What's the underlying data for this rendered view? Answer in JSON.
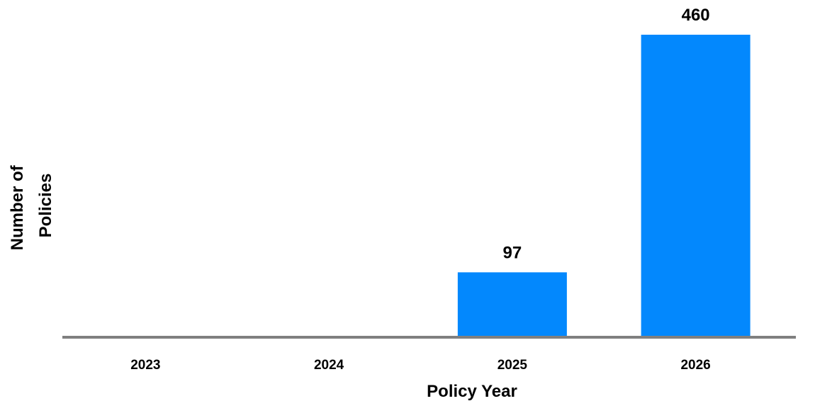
{
  "chart_data": {
    "type": "bar",
    "categories": [
      "2023",
      "2024",
      "2025",
      "2026"
    ],
    "values": [
      0,
      0,
      97,
      460
    ],
    "data_labels": [
      "",
      "",
      "97",
      "460"
    ],
    "xlabel": "Policy Year",
    "ylabel_lines": [
      "Number of",
      "Policies"
    ],
    "ylim": [
      0,
      460
    ],
    "grid": false,
    "legend": "none",
    "colors": {
      "bar": "#0388FD",
      "axis": "#808080"
    }
  }
}
